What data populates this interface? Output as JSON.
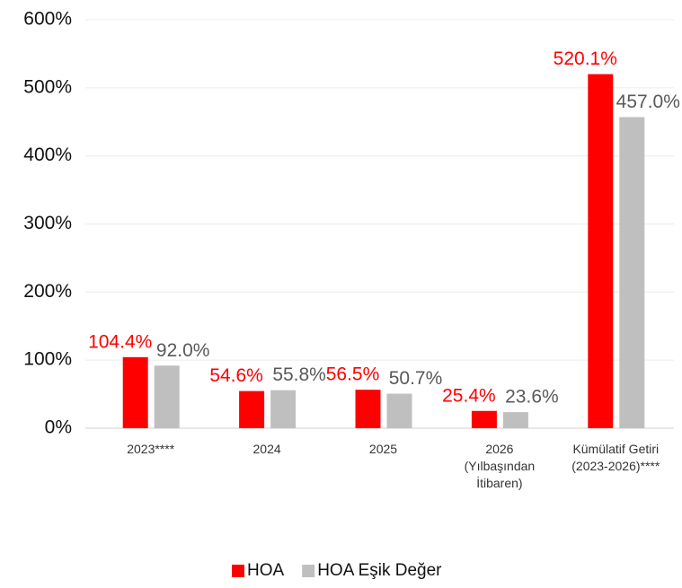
{
  "chart_data": {
    "type": "bar",
    "categories": [
      "2023****",
      "2024",
      "2025",
      "2026\n(Yılbaşından\nİtibaren)",
      "Kümülatif Getiri\n(2023-2026)****"
    ],
    "series": [
      {
        "name": "HOA",
        "color": "#ff0000",
        "values": [
          104.4,
          54.6,
          56.5,
          25.4,
          520.1
        ],
        "value_labels": [
          "104.4%",
          "54.6%",
          "56.5%",
          "25.4%",
          "520.1%"
        ]
      },
      {
        "name": "HOA Eşik Değer",
        "color": "#bfbfbf",
        "values": [
          92.0,
          55.8,
          50.7,
          23.6,
          457.0
        ],
        "value_labels": [
          "92.0%",
          "55.8%",
          "50.7%",
          "23.6%",
          "457.0%"
        ]
      }
    ],
    "ylim": [
      0,
      600
    ],
    "yticks": [
      {
        "value": 0,
        "label": "0%"
      },
      {
        "value": 100,
        "label": "100%"
      },
      {
        "value": 200,
        "label": "200%"
      },
      {
        "value": 300,
        "label": "300%"
      },
      {
        "value": 400,
        "label": "400%"
      },
      {
        "value": 500,
        "label": "500%"
      },
      {
        "value": 600,
        "label": "600%"
      }
    ],
    "grid": true,
    "legend": "bottom"
  }
}
